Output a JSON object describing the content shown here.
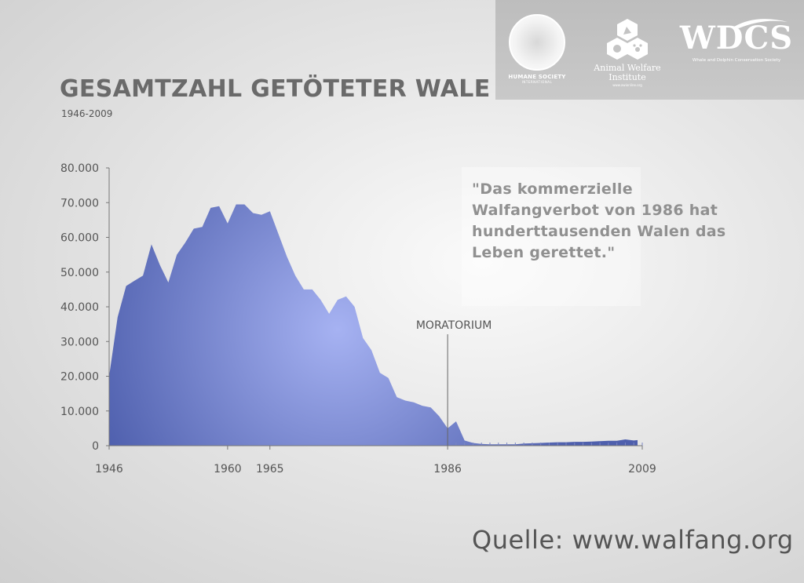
{
  "header": {
    "title": "GESAMTZAHL GETÖTETER WALE",
    "subtitle": "1946-2009"
  },
  "logos": {
    "hsi": {
      "line1": "HUMANE SOCIETY",
      "line2": "INTERNATIONAL"
    },
    "awi": {
      "line1": "Animal Welfare",
      "line2": "Institute",
      "line3": "www.awionline.org"
    },
    "wdcs": {
      "name": "WDCS",
      "tagline": "Whale and Dolphin Conservation Society"
    }
  },
  "quote": "\"Das kommerzielle\nWalfangverbot von 1986 hat\nhunderttausenden Walen das\nLeben gerettet.\"",
  "source": "Quelle: www.walfang.org",
  "colors": {
    "area_light": "#a6b2f2",
    "area_dark": "#4e5fad",
    "axis": "#777777"
  },
  "chart_data": {
    "type": "area",
    "title": "GESAMTZAHL GETÖTETER WALE",
    "subtitle": "1946-2009",
    "xlabel": "",
    "ylabel": "",
    "xlim": [
      1946,
      2009
    ],
    "ylim": [
      0,
      80000
    ],
    "x_ticks": [
      {
        "value": 1946,
        "label": "1946"
      },
      {
        "value": 1960,
        "label": "1960"
      },
      {
        "value": 1965,
        "label": "1965"
      },
      {
        "value": 1986,
        "label": "1986"
      },
      {
        "value": 2009,
        "label": "2009"
      }
    ],
    "y_ticks": [
      {
        "value": 0,
        "label": "0"
      },
      {
        "value": 10000,
        "label": "10.000"
      },
      {
        "value": 20000,
        "label": "20.000"
      },
      {
        "value": 30000,
        "label": "30.000"
      },
      {
        "value": 40000,
        "label": "40.000"
      },
      {
        "value": 50000,
        "label": "50.000"
      },
      {
        "value": 60000,
        "label": "60.000"
      },
      {
        "value": 70000,
        "label": "70.000"
      },
      {
        "value": 80000,
        "label": "80.000"
      }
    ],
    "grid": false,
    "annotations": [
      {
        "x": 1986,
        "label": "MORATORIUM"
      }
    ],
    "series": [
      {
        "x": [
          1946,
          1947,
          1948,
          1949,
          1950,
          1951,
          1952,
          1953,
          1954,
          1955,
          1956,
          1957,
          1958,
          1959,
          1960,
          1961,
          1962,
          1963,
          1964,
          1965,
          1966,
          1967,
          1968,
          1969,
          1970,
          1971,
          1972,
          1973,
          1974,
          1975,
          1976,
          1977,
          1978,
          1979,
          1980,
          1981,
          1982,
          1983,
          1984,
          1985,
          1986,
          1987,
          1988,
          1989,
          1990,
          1991,
          1992,
          1993,
          1994,
          1995,
          1996,
          1997,
          1998,
          1999,
          2000,
          2001,
          2002,
          2003,
          2004,
          2005,
          2006,
          2007,
          2008,
          2009
        ],
        "values": [
          20000,
          37000,
          46000,
          47500,
          49000,
          58000,
          52000,
          47000,
          55000,
          58500,
          62500,
          63000,
          68500,
          69000,
          64000,
          69500,
          69500,
          67000,
          66500,
          67500,
          61000,
          54500,
          49000,
          45000,
          45000,
          42000,
          38000,
          42000,
          43000,
          40000,
          31000,
          27500,
          21000,
          19500,
          14000,
          13000,
          12500,
          11500,
          11000,
          8500,
          5000,
          7000,
          1500,
          800,
          500,
          400,
          400,
          400,
          400,
          600,
          700,
          800,
          900,
          1000,
          1000,
          1100,
          1100,
          1200,
          1300,
          1400,
          1400,
          1800,
          1500,
          1600
        ]
      }
    ]
  }
}
